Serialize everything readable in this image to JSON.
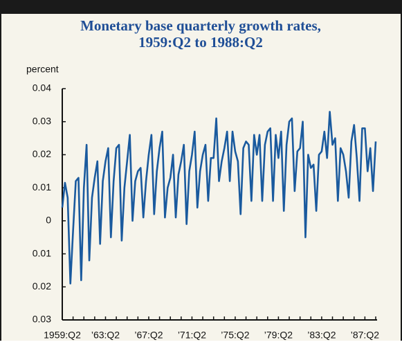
{
  "chart_data": {
    "type": "line",
    "title": [
      "Monetary base quarterly growth rates,",
      "1959:Q2 to 1988:Q2"
    ],
    "ylabel": "percent",
    "categories": [
      "1959:Q2",
      null,
      null,
      null,
      null,
      null,
      null,
      null,
      null,
      null,
      null,
      null,
      null,
      null,
      null,
      null,
      "’63:Q2",
      null,
      null,
      null,
      null,
      null,
      null,
      null,
      null,
      null,
      null,
      null,
      null,
      null,
      null,
      null,
      "’67:Q2",
      null,
      null,
      null,
      null,
      null,
      null,
      null,
      null,
      null,
      null,
      null,
      null,
      null,
      null,
      null,
      "’71:Q2",
      null,
      null,
      null,
      null,
      null,
      null,
      null,
      null,
      null,
      null,
      null,
      null,
      null,
      null,
      null,
      "’75:Q2",
      null,
      null,
      null,
      null,
      null,
      null,
      null,
      null,
      null,
      null,
      null,
      null,
      null,
      null,
      null,
      "’79:Q2",
      null,
      null,
      null,
      null,
      null,
      null,
      null,
      null,
      null,
      null,
      null,
      null,
      null,
      null,
      null,
      "’83:Q2",
      null,
      null,
      null,
      null,
      null,
      null,
      null,
      null,
      null,
      null,
      null,
      null,
      null,
      null,
      null,
      "’87:Q2",
      null,
      null,
      null,
      null
    ],
    "values": [
      0.004,
      0.0115,
      0.007,
      -0.019,
      -0.003,
      0.012,
      0.013,
      -0.018,
      0.01,
      0.023,
      -0.012,
      0.007,
      0.013,
      0.018,
      -0.007,
      0.012,
      0.018,
      0.022,
      -0.005,
      0.012,
      0.022,
      0.023,
      -0.006,
      0.01,
      0.018,
      0.026,
      0,
      0.012,
      0.015,
      0.016,
      0.001,
      0.012,
      0.02,
      0.026,
      0.002,
      0.015,
      0.022,
      0.027,
      0.001,
      0.01,
      0.013,
      0.02,
      0.001,
      0.014,
      0.018,
      0.023,
      -0.001,
      0.015,
      0.02,
      0.027,
      0.004,
      0.015,
      0.02,
      0.023,
      0.006,
      0.019,
      0.019,
      0.031,
      0.012,
      0.018,
      0.022,
      0.027,
      0.012,
      0.027,
      0.021,
      0.018,
      0.002,
      0.022,
      0.024,
      0.023,
      0.006,
      0.026,
      0.02,
      0.026,
      0.006,
      0.023,
      0.027,
      0.028,
      0.006,
      0.026,
      0.019,
      0.027,
      0.003,
      0.023,
      0.03,
      0.031,
      0.009,
      0.021,
      0.022,
      0.03,
      -0.005,
      0.02,
      0.016,
      0.017,
      0.003,
      0.02,
      0.021,
      0.027,
      0.019,
      0.033,
      0.023,
      0.025,
      0.006,
      0.022,
      0.02,
      0.015,
      0.007,
      0.024,
      0.029,
      0.019,
      0.006,
      0.028,
      0.028,
      0.015,
      0.022,
      0.009,
      0.024
    ],
    "color": "#1a5a9e",
    "ylim": [
      -0.03,
      0.04
    ],
    "yticks": [
      {
        "value": -0.03,
        "label": "0.03"
      },
      {
        "value": -0.02,
        "label": "0.02"
      },
      {
        "value": -0.01,
        "label": "0.01"
      },
      0,
      0.01,
      0.02,
      0.03,
      0.04
    ],
    "grid": false
  }
}
